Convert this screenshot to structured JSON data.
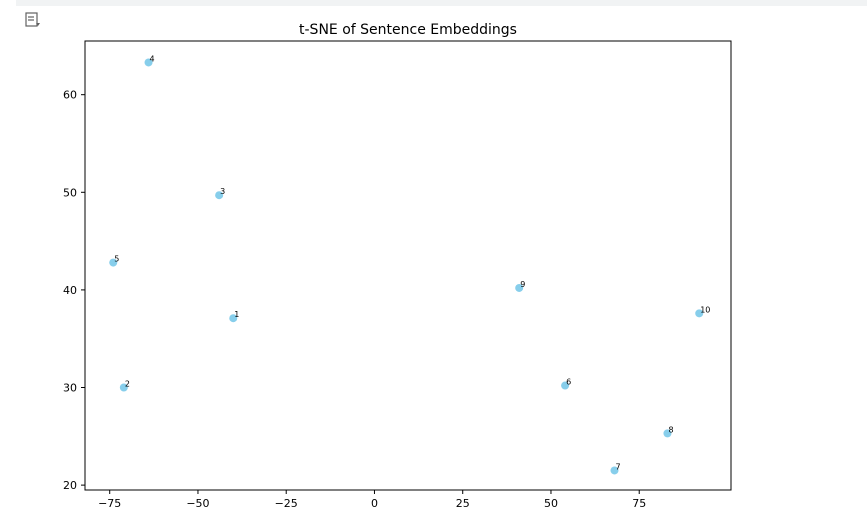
{
  "chart_data": {
    "type": "scatter",
    "title": "t-SNE of Sentence Embeddings",
    "xlabel": "",
    "ylabel": "",
    "xlim": [
      -82,
      101
    ],
    "ylim": [
      19.5,
      65.5
    ],
    "xticks": [
      -75,
      -50,
      -25,
      0,
      25,
      50,
      75
    ],
    "yticks": [
      20,
      30,
      40,
      50,
      60
    ],
    "grid": false,
    "point_color": "#87ceeb",
    "points": [
      {
        "label": "1",
        "x": -40,
        "y": 37.1
      },
      {
        "label": "2",
        "x": -71,
        "y": 30.0
      },
      {
        "label": "3",
        "x": -44,
        "y": 49.7
      },
      {
        "label": "4",
        "x": -64,
        "y": 63.3
      },
      {
        "label": "5",
        "x": -74,
        "y": 42.8
      },
      {
        "label": "6",
        "x": 54,
        "y": 30.2
      },
      {
        "label": "7",
        "x": 68,
        "y": 21.5
      },
      {
        "label": "8",
        "x": 83,
        "y": 25.3
      },
      {
        "label": "9",
        "x": 41,
        "y": 40.2
      },
      {
        "label": "10",
        "x": 92,
        "y": 37.6
      }
    ]
  }
}
